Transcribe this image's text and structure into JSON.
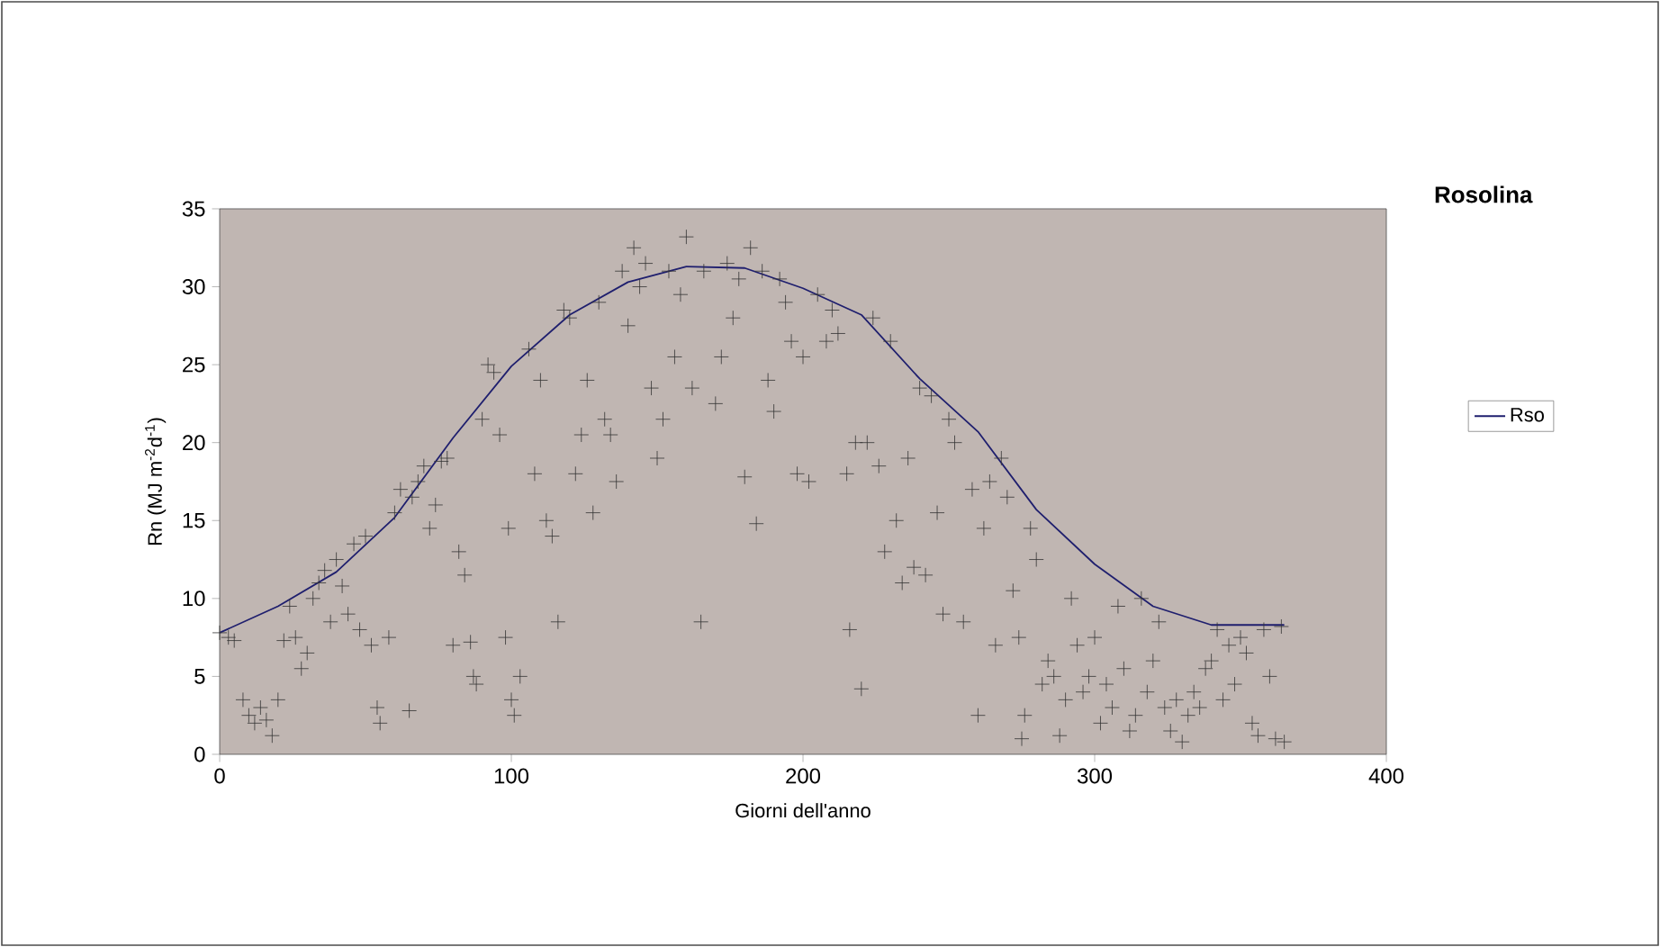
{
  "chart_data": {
    "type": "scatter",
    "title": "Rosolina",
    "xlabel": "Giorni dell'anno",
    "ylabel": "Rn (MJ m$^{-2}$d$^{-1}$)",
    "xlim": [
      0,
      400
    ],
    "xticks": [
      0,
      100,
      200,
      300,
      400
    ],
    "ylim": [
      0,
      35
    ],
    "yticks": [
      0,
      5,
      10,
      15,
      20,
      25,
      30,
      35
    ],
    "grid": false,
    "legend": "right",
    "series": [
      {
        "marker": "cross",
        "color": "#333333",
        "x": [
          0,
          3,
          5,
          8,
          10,
          12,
          14,
          16,
          18,
          20,
          22,
          24,
          26,
          28,
          30,
          32,
          34,
          36,
          38,
          40,
          42,
          44,
          46,
          48,
          50,
          52,
          54,
          55,
          58,
          60,
          62,
          65,
          66,
          68,
          70,
          72,
          74,
          76,
          78,
          80,
          82,
          84,
          86,
          87,
          88,
          90,
          92,
          94,
          96,
          98,
          99,
          100,
          101,
          103,
          106,
          108,
          110,
          112,
          114,
          116,
          118,
          120,
          122,
          124,
          126,
          128,
          130,
          132,
          134,
          136,
          138,
          140,
          142,
          144,
          146,
          148,
          150,
          152,
          154,
          156,
          158,
          160,
          162,
          165,
          166,
          170,
          172,
          174,
          176,
          178,
          180,
          182,
          184,
          186,
          188,
          190,
          192,
          194,
          196,
          198,
          200,
          202,
          205,
          208,
          210,
          212,
          215,
          216,
          218,
          220,
          222,
          224,
          226,
          228,
          230,
          232,
          234,
          236,
          238,
          240,
          242,
          244,
          246,
          248,
          250,
          252,
          255,
          258,
          260,
          262,
          264,
          266,
          268,
          270,
          272,
          274,
          275,
          276,
          278,
          280,
          282,
          284,
          286,
          288,
          290,
          292,
          294,
          296,
          298,
          300,
          302,
          304,
          306,
          308,
          310,
          312,
          314,
          316,
          318,
          320,
          322,
          324,
          326,
          328,
          330,
          332,
          334,
          336,
          338,
          340,
          342,
          344,
          346,
          348,
          350,
          352,
          354,
          356,
          358,
          360,
          362,
          364,
          365
        ],
        "values": [
          7.8,
          7.5,
          7.3,
          3.5,
          2.5,
          2.0,
          3.0,
          2.2,
          1.2,
          3.5,
          7.3,
          9.5,
          7.5,
          5.5,
          6.5,
          10.0,
          11.0,
          11.8,
          8.5,
          12.5,
          10.8,
          9.0,
          13.5,
          8.0,
          14.0,
          7.0,
          3.0,
          2.0,
          7.5,
          15.5,
          17.0,
          2.8,
          16.5,
          17.5,
          18.5,
          14.5,
          16.0,
          18.8,
          19.0,
          7.0,
          13.0,
          11.5,
          7.2,
          5.0,
          4.5,
          21.5,
          25.0,
          24.5,
          20.5,
          7.5,
          14.5,
          3.5,
          2.5,
          5.0,
          26.0,
          18.0,
          24.0,
          15.0,
          14.0,
          8.5,
          28.5,
          28.0,
          18.0,
          20.5,
          24.0,
          15.5,
          29.0,
          21.5,
          20.5,
          17.5,
          31.0,
          27.5,
          32.5,
          30.0,
          31.5,
          23.5,
          19.0,
          21.5,
          31.0,
          25.5,
          29.5,
          33.2,
          23.5,
          8.5,
          31.0,
          22.5,
          25.5,
          31.5,
          28.0,
          30.5,
          17.8,
          32.5,
          14.8,
          31.0,
          24.0,
          22.0,
          30.5,
          29.0,
          26.5,
          18.0,
          25.5,
          17.5,
          29.5,
          26.5,
          28.5,
          27.0,
          18.0,
          8.0,
          20.0,
          4.2,
          20.0,
          28.0,
          18.5,
          13.0,
          26.5,
          15.0,
          11.0,
          19.0,
          12.0,
          23.5,
          11.5,
          23.0,
          15.5,
          9.0,
          21.5,
          20.0,
          8.5,
          17.0,
          2.5,
          14.5,
          17.5,
          7.0,
          19.0,
          16.5,
          10.5,
          7.5,
          1.0,
          2.5,
          14.5,
          12.5,
          4.5,
          6.0,
          5.0,
          1.2,
          3.5,
          10.0,
          7.0,
          4.0,
          5.0,
          7.5,
          2.0,
          4.5,
          3.0,
          9.5,
          5.5,
          1.5,
          2.5,
          10.0,
          4.0,
          6.0,
          8.5,
          3.0,
          1.5,
          3.5,
          0.8,
          2.5,
          4.0,
          3.0,
          5.5,
          6.0,
          8.0,
          3.5,
          7.0,
          4.5,
          7.5,
          6.5,
          2.0,
          1.2,
          8.0,
          5.0,
          1.0,
          8.2,
          0.8
        ]
      },
      {
        "type": "line",
        "name": "Rso",
        "marker": "none",
        "color": "#1f1f6e",
        "x": [
          0,
          20,
          40,
          60,
          80,
          100,
          120,
          140,
          160,
          180,
          200,
          220,
          240,
          260,
          280,
          300,
          320,
          340,
          365
        ],
        "values": [
          7.8,
          9.5,
          11.7,
          15.2,
          20.3,
          24.9,
          28.2,
          30.3,
          31.3,
          31.2,
          29.9,
          28.2,
          24.1,
          20.7,
          15.7,
          12.2,
          9.5,
          8.3,
          8.3
        ]
      }
    ]
  }
}
